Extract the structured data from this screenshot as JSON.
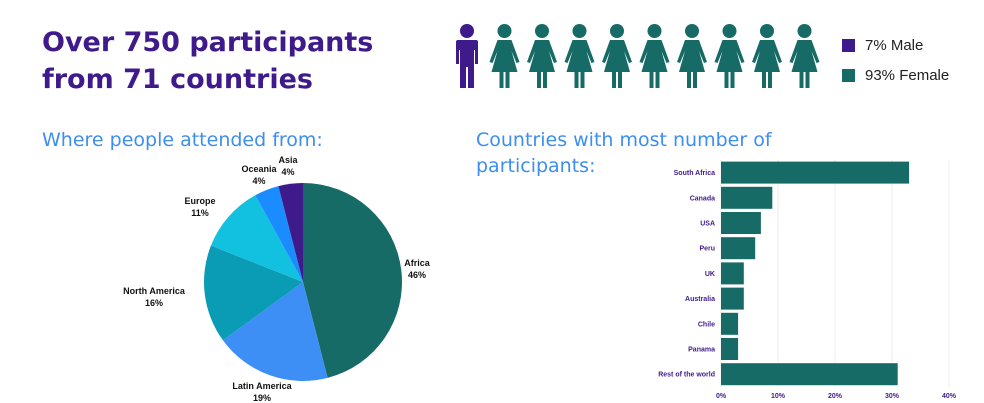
{
  "headline": {
    "line1": "Over 750 participants",
    "line2": "from 71 countries"
  },
  "gender": {
    "legend": [
      {
        "label": "7% Male",
        "color": "#3f1a8a"
      },
      {
        "label": "93% Female",
        "color": "#176b67"
      }
    ],
    "male_count": 1,
    "female_count": 9
  },
  "pie_section": {
    "title": "Where people attended from:"
  },
  "bar_section": {
    "title": "Countries with most number of participants:"
  },
  "chart_data": [
    {
      "type": "pie",
      "slices": [
        {
          "label": "Africa",
          "value": 46,
          "display": "46%",
          "color": "#176b67"
        },
        {
          "label": "Latin America",
          "value": 19,
          "display": "19%",
          "color": "#3d8ef5"
        },
        {
          "label": "North America",
          "value": 16,
          "display": "16%",
          "color": "#0a9bb5"
        },
        {
          "label": "Europe",
          "value": 11,
          "display": "11%",
          "color": "#12c0df"
        },
        {
          "label": "Oceania",
          "value": 4,
          "display": "4%",
          "color": "#1a8cff"
        },
        {
          "label": "Asia",
          "value": 4,
          "display": "4%",
          "color": "#3f1a8a"
        }
      ]
    },
    {
      "type": "bar",
      "orientation": "horizontal",
      "categories": [
        "South Africa",
        "Canada",
        "USA",
        "Peru",
        "UK",
        "Australia",
        "Chile",
        "Panama",
        "Rest of the world"
      ],
      "values": [
        33,
        9,
        7,
        6,
        4,
        4,
        3,
        3,
        31
      ],
      "x_ticks": [
        "0%",
        "10%",
        "20%",
        "30%",
        "40%"
      ],
      "xlim": [
        0,
        40
      ],
      "bar_color": "#176b67",
      "label_color": "#3f1a8a",
      "grid": true
    }
  ]
}
